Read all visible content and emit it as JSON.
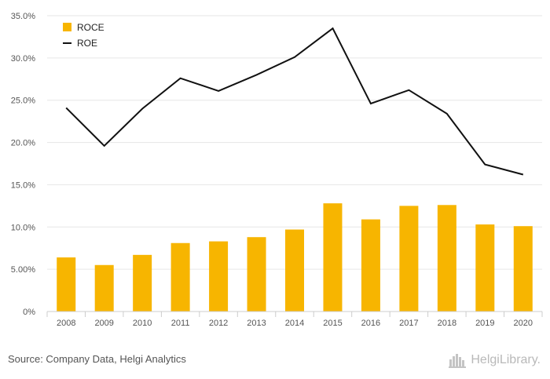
{
  "chart_data": {
    "type": "bar",
    "categories": [
      "2008",
      "2009",
      "2010",
      "2011",
      "2012",
      "2013",
      "2014",
      "2015",
      "2016",
      "2017",
      "2018",
      "2019",
      "2020"
    ],
    "series": [
      {
        "name": "ROCE",
        "type": "bar",
        "color": "#f7b500",
        "values": [
          6.4,
          5.5,
          6.7,
          8.1,
          8.3,
          8.8,
          9.7,
          12.8,
          10.9,
          12.5,
          12.6,
          10.3,
          10.1
        ]
      },
      {
        "name": "ROE",
        "type": "line",
        "color": "#111111",
        "values": [
          24.1,
          19.6,
          24.0,
          27.6,
          26.1,
          28.0,
          30.1,
          33.5,
          24.6,
          26.2,
          23.4,
          17.4,
          16.2
        ]
      }
    ],
    "yticks": [
      "0%",
      "5.00%",
      "10.0%",
      "15.0%",
      "20.0%",
      "25.0%",
      "30.0%",
      "35.0%"
    ],
    "ylim": [
      0,
      35
    ],
    "grid": true,
    "legend_position": "top-left"
  },
  "footer": {
    "source": "Source: Company Data, Helgi Analytics",
    "brand": "HelgiLibrary."
  }
}
